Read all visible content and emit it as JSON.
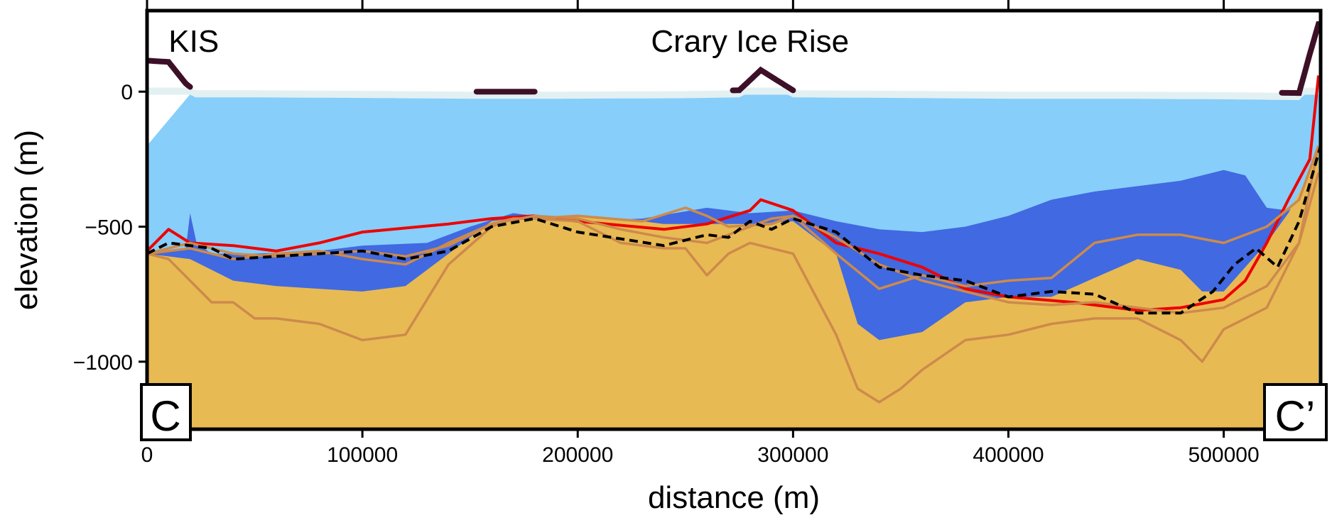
{
  "chart_data": {
    "type": "area",
    "title": "",
    "xlabel": "distance (m)",
    "ylabel": "elevation (m)",
    "xlim": [
      0,
      545000
    ],
    "ylim": [
      -1250,
      300
    ],
    "x_ticks": [
      0,
      100000,
      200000,
      300000,
      400000,
      500000
    ],
    "x_tick_labels": [
      "0",
      "100000",
      "200000",
      "300000",
      "400000",
      "500000"
    ],
    "y_ticks": [
      0,
      -500,
      -1000
    ],
    "y_tick_labels": [
      "0",
      "−500",
      "−1000"
    ],
    "annotations": [
      {
        "text": "KIS",
        "x": 10000,
        "y": 190
      },
      {
        "text": "Crary Ice Rise",
        "x": 280000,
        "y": 190
      }
    ],
    "corner_labels": {
      "left": "C",
      "right": "C’"
    },
    "colors": {
      "ice": "#ffffff",
      "ice_surface": "#e2f0f2",
      "water": "#87cefa",
      "sediment": "#4169e1",
      "bed": "#e8ba53",
      "grounded_ice": "#3d1027",
      "red_line": "#ee0000",
      "tan_lines": "#cd8a4c",
      "dashed_line": "#000000"
    },
    "series": [
      {
        "role": "ice_surface",
        "x": [
          0,
          10000,
          18000,
          22000,
          50000,
          100000,
          150000,
          170000,
          190000,
          250000,
          275000,
          285000,
          295000,
          300000,
          350000,
          400000,
          450000,
          500000,
          535000,
          540000,
          544000
        ],
        "y": [
          115,
          110,
          30,
          5,
          5,
          3,
          0,
          0,
          0,
          2,
          5,
          80,
          30,
          5,
          3,
          0,
          0,
          -2,
          -5,
          140,
          250
        ]
      },
      {
        "role": "ice_base_water_top",
        "x": [
          0,
          20000,
          545000
        ],
        "y": [
          -200,
          -10,
          -10
        ]
      },
      {
        "role": "sediment_top",
        "x": [
          0,
          18000,
          20000,
          23000,
          30000,
          50000,
          80000,
          100000,
          130000,
          150000,
          170000,
          200000,
          230000,
          260000,
          280000,
          300000,
          320000,
          340000,
          360000,
          380000,
          400000,
          420000,
          440000,
          460000,
          480000,
          500000,
          510000,
          520000,
          530000,
          540000,
          544000
        ],
        "y": [
          -600,
          -580,
          -450,
          -560,
          -600,
          -600,
          -590,
          -570,
          -560,
          -500,
          -450,
          -480,
          -470,
          -430,
          -450,
          -440,
          -480,
          -510,
          -520,
          -500,
          -460,
          -400,
          -370,
          -350,
          -330,
          -290,
          -310,
          -430,
          -440,
          -380,
          -260
        ]
      },
      {
        "role": "bed_top",
        "x": [
          0,
          20000,
          40000,
          60000,
          80000,
          100000,
          120000,
          140000,
          160000,
          180000,
          200000,
          220000,
          240000,
          260000,
          280000,
          300000,
          320000,
          330000,
          340000,
          360000,
          380000,
          400000,
          420000,
          440000,
          460000,
          480000,
          490000,
          500000,
          510000,
          520000,
          530000,
          540000,
          544000
        ],
        "y": [
          -600,
          -620,
          -700,
          -720,
          -730,
          -740,
          -720,
          -600,
          -480,
          -460,
          -460,
          -470,
          -490,
          -490,
          -490,
          -480,
          -600,
          -860,
          -920,
          -890,
          -780,
          -760,
          -760,
          -690,
          -620,
          -660,
          -740,
          -740,
          -650,
          -560,
          -450,
          -300,
          -200
        ]
      },
      {
        "name": "red line",
        "role": "line",
        "x": [
          0,
          10000,
          20000,
          40000,
          60000,
          80000,
          100000,
          140000,
          160000,
          180000,
          200000,
          240000,
          260000,
          280000,
          285000,
          300000,
          320000,
          340000,
          360000,
          380000,
          400000,
          430000,
          460000,
          480000,
          500000,
          510000,
          520000,
          530000,
          540000,
          544000
        ],
        "y": [
          -590,
          -510,
          -560,
          -570,
          -590,
          -560,
          -520,
          -490,
          -470,
          -460,
          -480,
          -510,
          -490,
          -440,
          -400,
          -440,
          -560,
          -600,
          -650,
          -730,
          -760,
          -780,
          -810,
          -800,
          -770,
          -700,
          -560,
          -400,
          -250,
          60
        ]
      },
      {
        "name": "dashed line",
        "role": "line",
        "x": [
          0,
          10000,
          20000,
          30000,
          40000,
          60000,
          80000,
          100000,
          120000,
          140000,
          160000,
          180000,
          200000,
          240000,
          260000,
          270000,
          280000,
          290000,
          300000,
          320000,
          340000,
          360000,
          380000,
          400000,
          420000,
          440000,
          460000,
          480000,
          495000,
          505000,
          515000,
          525000,
          535000,
          545000
        ],
        "y": [
          -600,
          -560,
          -570,
          -580,
          -620,
          -610,
          -600,
          -590,
          -620,
          -590,
          -500,
          -470,
          -520,
          -570,
          -530,
          -540,
          -480,
          -510,
          -470,
          -520,
          -650,
          -680,
          -700,
          -760,
          -740,
          -750,
          -820,
          -820,
          -740,
          -640,
          -580,
          -650,
          -480,
          -200
        ]
      },
      {
        "name": "tan line 1",
        "role": "line",
        "x": [
          0,
          20000,
          40000,
          60000,
          80000,
          100000,
          120000,
          140000,
          160000,
          170000,
          180000,
          200000,
          230000,
          250000,
          260000,
          270000,
          290000,
          300000,
          320000,
          340000,
          360000,
          380000,
          400000,
          420000,
          440000,
          460000,
          480000,
          500000,
          520000,
          535000,
          544000
        ],
        "y": [
          -600,
          -580,
          -620,
          -600,
          -590,
          -620,
          -640,
          -560,
          -490,
          -470,
          -470,
          -460,
          -480,
          -430,
          -460,
          -500,
          -490,
          -460,
          -600,
          -730,
          -680,
          -720,
          -700,
          -690,
          -560,
          -530,
          -530,
          -560,
          -500,
          -400,
          -200
        ]
      },
      {
        "name": "tan line 2",
        "role": "line",
        "x": [
          0,
          10000,
          20000,
          30000,
          40000,
          50000,
          60000,
          80000,
          100000,
          120000,
          140000,
          160000,
          170000,
          180000,
          200000,
          220000,
          240000,
          250000,
          260000,
          270000,
          280000,
          300000,
          320000,
          330000,
          340000,
          350000,
          360000,
          380000,
          400000,
          420000,
          440000,
          460000,
          480000,
          490000,
          500000,
          520000,
          535000,
          544000
        ],
        "y": [
          -600,
          -620,
          -700,
          -780,
          -780,
          -840,
          -840,
          -860,
          -920,
          -900,
          -640,
          -500,
          -470,
          -470,
          -480,
          -560,
          -580,
          -580,
          -680,
          -600,
          -560,
          -600,
          -900,
          -1100,
          -1150,
          -1100,
          -1030,
          -920,
          -900,
          -860,
          -840,
          -840,
          -920,
          -1000,
          -880,
          -800,
          -560,
          -200
        ]
      },
      {
        "name": "tan line 3",
        "role": "line",
        "x": [
          0,
          20000,
          40000,
          60000,
          80000,
          100000,
          120000,
          140000,
          160000,
          180000,
          200000,
          220000,
          240000,
          260000,
          280000,
          290000,
          300000,
          320000,
          340000,
          360000,
          380000,
          400000,
          420000,
          440000,
          460000,
          480000,
          500000,
          520000,
          535000,
          544000
        ],
        "y": [
          -600,
          -560,
          -600,
          -610,
          -600,
          -590,
          -610,
          -570,
          -490,
          -460,
          -470,
          -510,
          -540,
          -560,
          -500,
          -470,
          -460,
          -540,
          -640,
          -700,
          -740,
          -780,
          -790,
          -780,
          -800,
          -820,
          -800,
          -720,
          -560,
          -300
        ]
      }
    ]
  }
}
